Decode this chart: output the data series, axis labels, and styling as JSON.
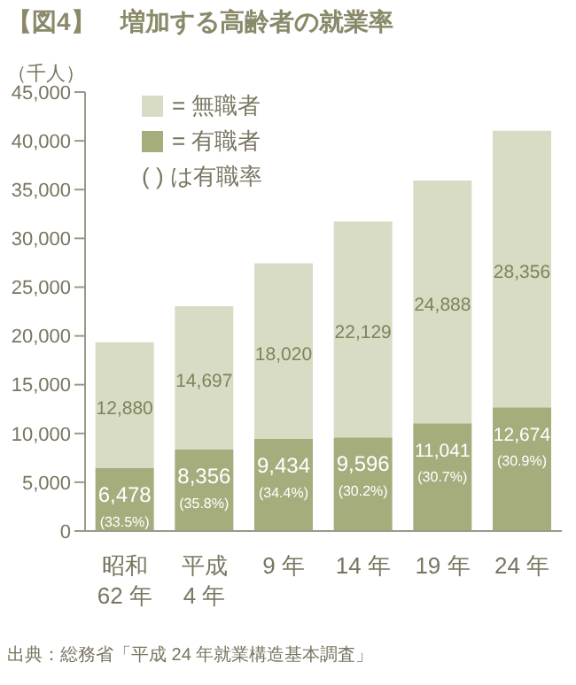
{
  "chart_data": {
    "type": "bar",
    "title": "【図4】　増加する高齢者の就業率",
    "ylabel": "（千人）",
    "categories": [
      "昭和\n62 年",
      "平成\n4 年",
      "9 年",
      "14 年",
      "19 年",
      "24 年"
    ],
    "series": [
      {
        "name": "= 有職者",
        "color": "#a5ad7c",
        "values": [
          6478,
          8356,
          9434,
          9596,
          11041,
          12674
        ],
        "value_labels": [
          "6,478\n(33.5%)",
          "8,356\n(35.8%)",
          "9,434\n(34.4%)",
          "9,596\n(30.2%)",
          "11,041\n(30.7%)",
          "12,674\n(30.9%)"
        ]
      },
      {
        "name": "= 無職者",
        "color": "#d8dcc5",
        "values": [
          12880,
          14697,
          18020,
          22129,
          24888,
          28356
        ],
        "value_labels": [
          "12,880",
          "14,697",
          "18,020",
          "22,129",
          "24,888",
          "28,356"
        ]
      }
    ],
    "stacked": true,
    "ylim": [
      0,
      45000
    ],
    "yticks": [
      {
        "value": 0,
        "label": "0"
      },
      {
        "value": 5000,
        "label": "5,000"
      },
      {
        "value": 10000,
        "label": "10,000"
      },
      {
        "value": 15000,
        "label": "15,000"
      },
      {
        "value": 20000,
        "label": "20,000"
      },
      {
        "value": 25000,
        "label": "25,000"
      },
      {
        "value": 30000,
        "label": "30,000"
      },
      {
        "value": 35000,
        "label": "35,000"
      },
      {
        "value": 40000,
        "label": "40,000"
      },
      {
        "value": 45000,
        "label": "45,000"
      }
    ],
    "legend": "top left",
    "annotations": [
      "( ) は有職率",
      "出典：総務省「平成 24 年就業構造基本調査」"
    ]
  }
}
